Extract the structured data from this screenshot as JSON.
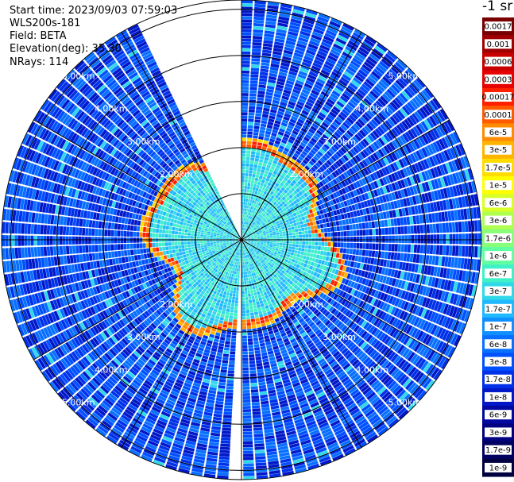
{
  "info": {
    "start_time": "Start time: 2023/09/03 07:59:03",
    "site": "WLS200s-181",
    "field": "Field: BETA",
    "elevation": "Elevation(deg): 35.30",
    "nrays": "NRays: 114"
  },
  "chart_data": {
    "type": "heatmap",
    "projection": "polar-ppi",
    "unit_label": "-1 sr",
    "range_labels_km": [
      "2.00km",
      "3.00km",
      "4.00km",
      "5.00km"
    ],
    "max_range_km": 5.2,
    "ring_ranges_km": [
      1.0,
      2.0,
      3.0,
      4.0,
      5.0
    ],
    "spoke_step_deg": 30,
    "colorbar": {
      "labels": [
        "0.0017",
        "0.001",
        "0.0006",
        "0.0003",
        "0.00017",
        "0.0001",
        "6e-5",
        "3e-5",
        "1.7e-5",
        "1e-5",
        "6e-6",
        "3e-6",
        "1.7e-6",
        "1e-6",
        "6e-7",
        "3e-7",
        "1.7e-7",
        "1e-7",
        "6e-8",
        "3e-8",
        "1.7e-8",
        "1e-8",
        "6e-9",
        "3e-9",
        "1.7e-9",
        "1e-9"
      ],
      "colors": [
        "#7a0000",
        "#a00000",
        "#c80000",
        "#e60000",
        "#ff2000",
        "#ff5a00",
        "#ff8c00",
        "#ffb400",
        "#ffdc00",
        "#ffff00",
        "#d8ff28",
        "#b0ff50",
        "#88ff78",
        "#60ffa0",
        "#40f0c8",
        "#30d8e8",
        "#20b8ff",
        "#1090ff",
        "#0870ff",
        "#0050ff",
        "#0030e8",
        "#0018c8",
        "#0008a0",
        "#000080",
        "#000060",
        "#000040"
      ]
    },
    "missing_sectors_deg": [
      [
        -25,
        0
      ],
      [
        179,
        182
      ]
    ],
    "near_field_level": "3e-7",
    "boundary_range_km": 2.0,
    "boundary_level": "0.0001",
    "far_field_level": "3e-8"
  }
}
